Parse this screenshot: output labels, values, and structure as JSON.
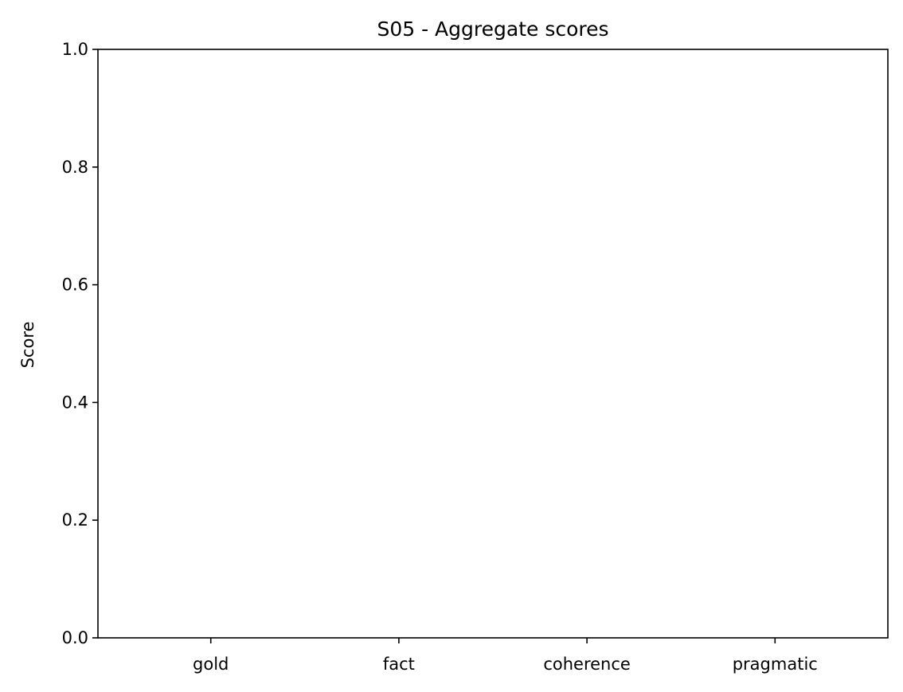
{
  "chart_data": {
    "type": "bar",
    "title": "S05 - Aggregate scores",
    "xlabel": "",
    "ylabel": "Score",
    "categories": [
      "gold",
      "fact",
      "coherence",
      "pragmatic"
    ],
    "values": [
      0,
      0,
      0,
      0
    ],
    "ylim": [
      0,
      1
    ],
    "yticks": [
      "0.0",
      "0.2",
      "0.4",
      "0.6",
      "0.8",
      "1.0"
    ],
    "ytick_values": [
      0,
      0.2,
      0.4,
      0.6,
      0.8,
      1.0
    ],
    "grid": false,
    "legend": "none",
    "bar_color": "#1f77b4"
  }
}
